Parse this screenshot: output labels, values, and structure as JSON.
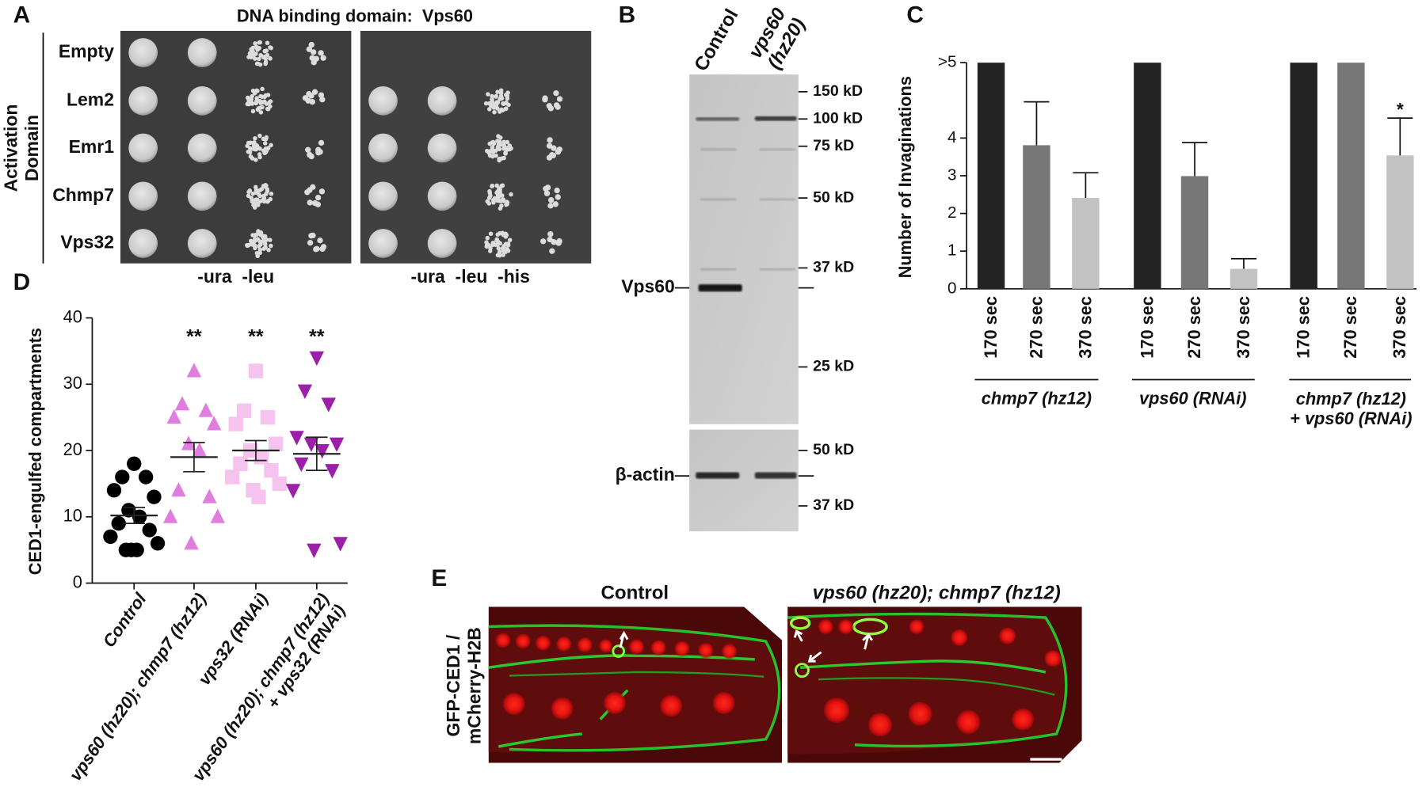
{
  "panel_labels": [
    "A",
    "B",
    "C",
    "D",
    "E"
  ],
  "panel_a": {
    "title": "DNA binding domain:  Vps60",
    "side_label": "Activation\nDomain",
    "rows": [
      "Empty",
      "Lem2",
      "Emr1",
      "Chmp7",
      "Vps32"
    ],
    "plate_labels": [
      "-ura  -leu",
      "-ura  -leu  -his"
    ]
  },
  "panel_b": {
    "lanes": [
      "Control",
      "vps60\n(hz20)"
    ],
    "markers": [
      "150 kD",
      "100 kD",
      "75 kD",
      "50 kD",
      "37 kD",
      "25 kD"
    ],
    "actin_markers": [
      "50 kD",
      "37 kD"
    ],
    "bands": [
      "Vps60",
      "β-actin"
    ]
  },
  "panel_e": {
    "titles": [
      "Control",
      "vps60 (hz20); chmp7 (hz12)"
    ],
    "side_label": "GFP-CED1 /\nmCherry-H2B"
  },
  "chart_data": [
    {
      "type": "bar",
      "ylabel": "Number of Invaginations",
      "categories": [
        "170 sec",
        "270 sec",
        "370 sec",
        "170 sec",
        "270 sec",
        "370 sec",
        "170 sec",
        "270 sec",
        "370 sec"
      ],
      "groups": [
        "chmp7 (hz12)",
        "vps60 (RNAi)",
        "chmp7 (hz12)\n+ vps60 (RNAi)"
      ],
      "values": [
        6,
        3.81,
        2.41,
        6,
        2.99,
        0.53,
        6,
        6,
        3.54
      ],
      "errors": [
        null,
        1.15,
        0.67,
        null,
        0.89,
        0.27,
        null,
        null,
        0.99
      ],
      "colors": [
        "#232323",
        "#777777",
        "#c2c2c2",
        "#232323",
        "#777777",
        "#c2c2c2",
        "#232323",
        "#777777",
        "#c2c2c2"
      ],
      "annotations": [
        null,
        null,
        null,
        null,
        null,
        null,
        null,
        null,
        "*"
      ],
      "ylim": [
        0,
        6
      ],
      "yticks": [
        0,
        1,
        2,
        3,
        4,
        {
          "value": 6,
          "label": ">5"
        }
      ]
    },
    {
      "type": "dotplot",
      "ylabel": "CED1-engulfed compartments",
      "categories": [
        "Control",
        "vps60 (hz20); chmp7 (hz12)",
        "vps32 (RNAi)",
        "vps60 (hz20); chmp7 (hz12)\n+ vps32 (RNAi)"
      ],
      "groups": [
        {
          "values": [
            18,
            16,
            16,
            14,
            13,
            11,
            10,
            9,
            8,
            7,
            6,
            5,
            5,
            5
          ],
          "mean": 10.2,
          "sem": 1.2,
          "color": "#000000",
          "marker": "circle"
        },
        {
          "values": [
            32,
            27,
            26,
            25,
            24,
            21,
            20,
            14,
            13,
            10,
            10,
            6
          ],
          "mean": 19.0,
          "sem": 2.2,
          "color": "#e07ee0",
          "marker": "triangle-up"
        },
        {
          "values": [
            32,
            26,
            25,
            24,
            21,
            20,
            19,
            18,
            17,
            16,
            15,
            14,
            13
          ],
          "mean": 20.0,
          "sem": 1.5,
          "color": "#f6c3ee",
          "marker": "square"
        },
        {
          "values": [
            34,
            29,
            27,
            22,
            21,
            21,
            20,
            18,
            17,
            14,
            6,
            5
          ],
          "mean": 19.5,
          "sem": 2.5,
          "color": "#9b1fa8",
          "marker": "triangle-down"
        }
      ],
      "annotations": [
        null,
        "**",
        "**",
        "**"
      ],
      "ylim": [
        0,
        40
      ],
      "yticks": [
        0,
        10,
        20,
        30,
        40
      ]
    }
  ]
}
